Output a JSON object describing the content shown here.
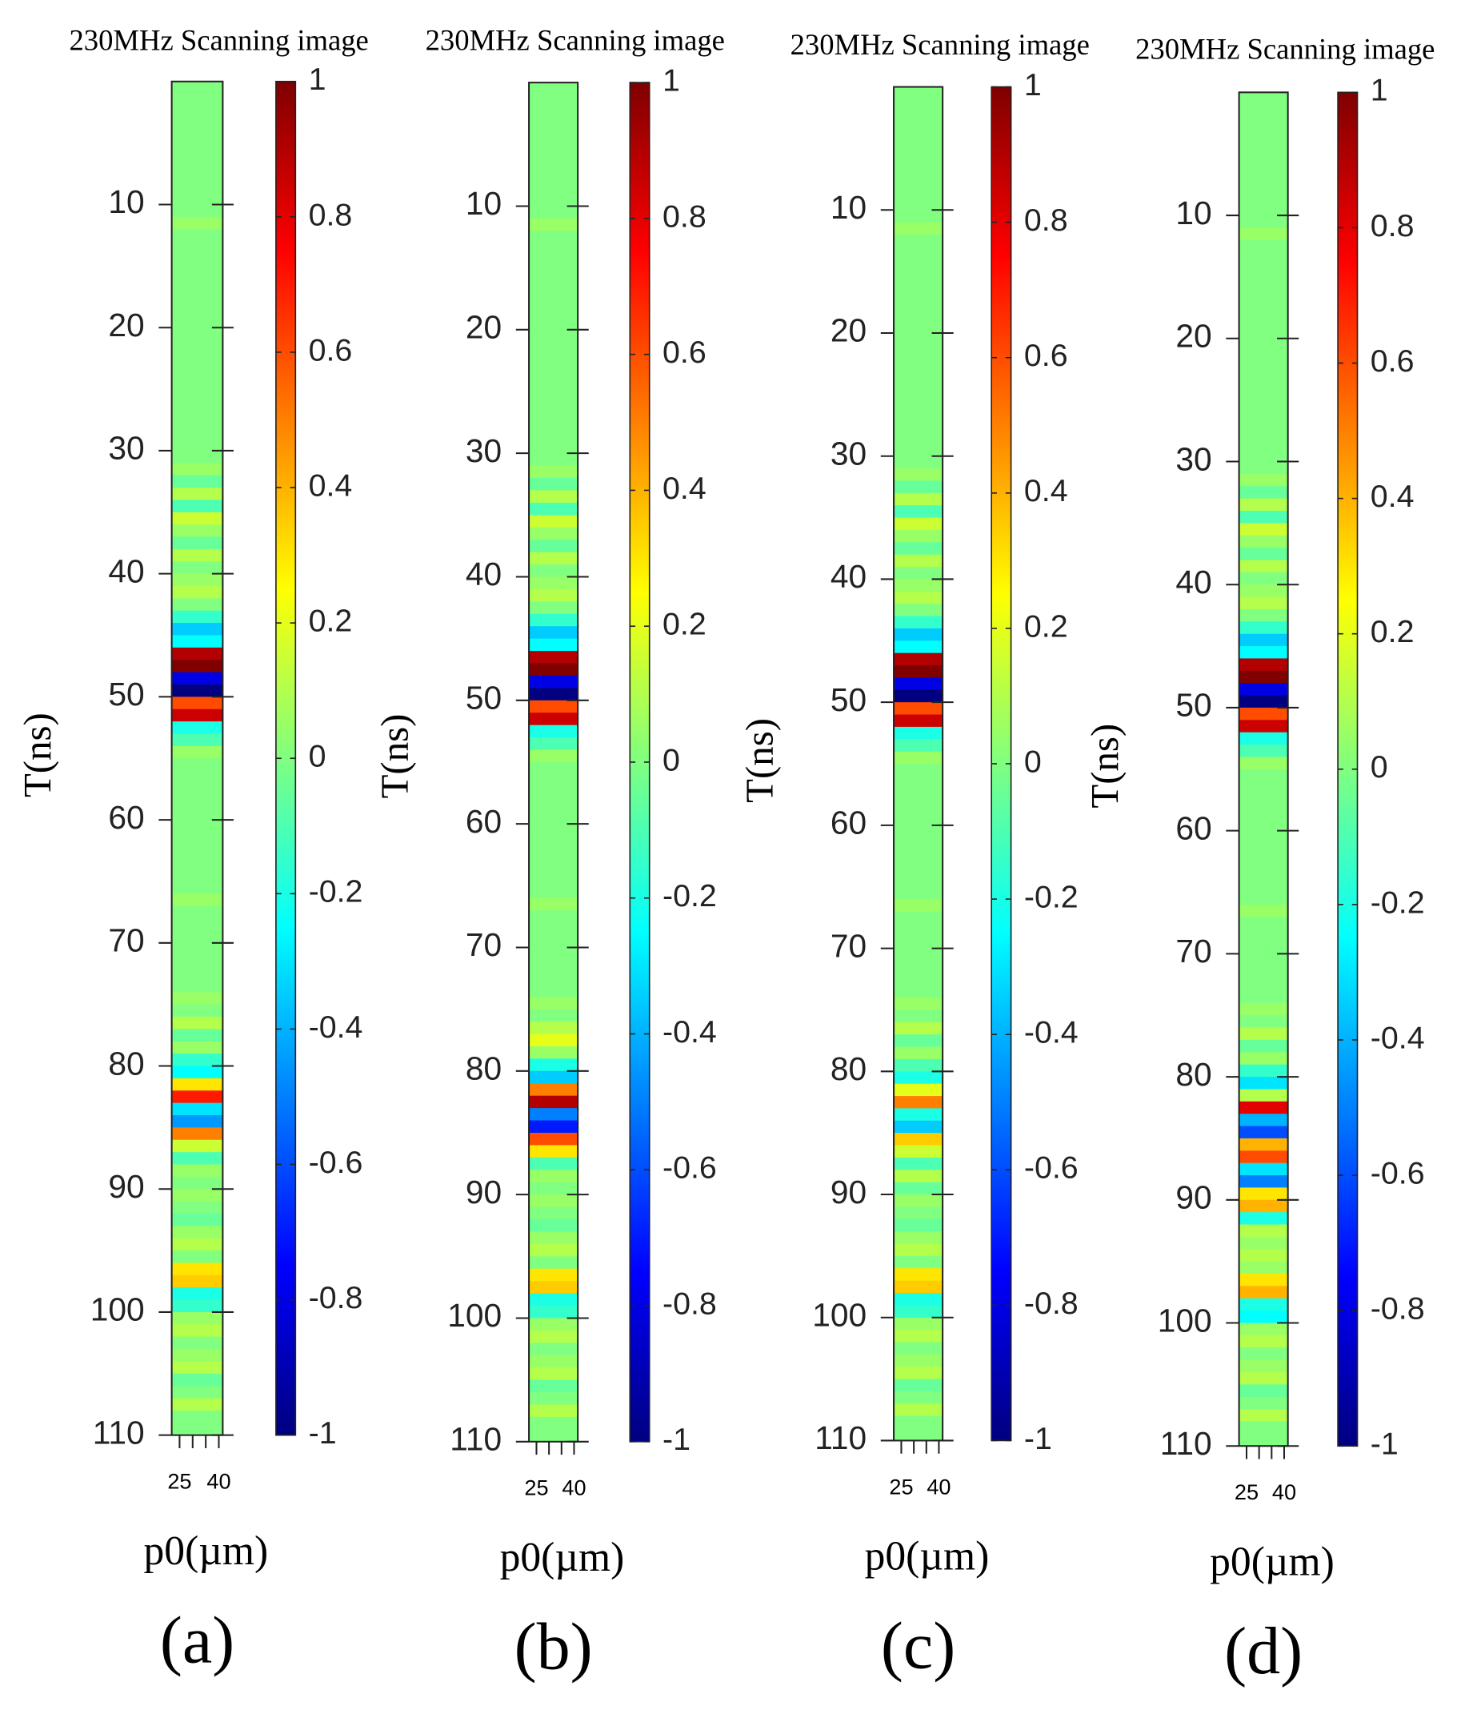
{
  "chart_data": [
    {
      "type": "heatmap",
      "title": "230MHz Scanning image",
      "ylabel": "T(ns)",
      "xlabel": "p0(µm)",
      "panel_label": "(a)",
      "ylim": [
        0,
        110
      ],
      "yticks": [
        10,
        20,
        30,
        40,
        50,
        60,
        70,
        80,
        90,
        100,
        110
      ],
      "xlim": [
        22,
        41.5
      ],
      "xticks": [
        25,
        40
      ],
      "xminor_ticks": [
        30,
        35
      ],
      "colormap": "jet",
      "clim": [
        -1,
        1
      ],
      "cticks": [
        -1,
        -0.8,
        -0.6,
        -0.4,
        -0.2,
        0,
        0.2,
        0.4,
        0.6,
        0.8,
        1
      ],
      "t": [
        1,
        2,
        3,
        4,
        5,
        6,
        7,
        8,
        9,
        10,
        11,
        12,
        13,
        14,
        15,
        16,
        17,
        18,
        19,
        20,
        21,
        22,
        23,
        24,
        25,
        26,
        27,
        28,
        29,
        30,
        31,
        32,
        33,
        34,
        35,
        36,
        37,
        38,
        39,
        40,
        41,
        42,
        43,
        44,
        45,
        46,
        47,
        48,
        49,
        50,
        51,
        52,
        53,
        54,
        55,
        56,
        57,
        58,
        59,
        60,
        61,
        62,
        63,
        64,
        65,
        66,
        67,
        68,
        69,
        70,
        71,
        72,
        73,
        74,
        75,
        76,
        77,
        78,
        79,
        80,
        81,
        82,
        83,
        84,
        85,
        86,
        87,
        88,
        89,
        90,
        91,
        92,
        93,
        94,
        95,
        96,
        97,
        98,
        99,
        100,
        101,
        102,
        103,
        104,
        105,
        106,
        107,
        108,
        109,
        110
      ],
      "values": [
        0,
        0,
        0,
        0,
        0,
        0,
        0,
        0,
        0,
        0,
        0,
        0.05,
        0,
        0,
        0,
        0,
        0,
        0,
        0,
        0,
        0,
        0,
        0,
        0,
        0,
        0,
        0,
        0,
        0,
        0,
        0,
        0.05,
        -0.05,
        0.1,
        -0.1,
        0.15,
        0.05,
        -0.05,
        0.1,
        0,
        0.05,
        0.1,
        0,
        -0.15,
        -0.35,
        -0.25,
        0.9,
        1,
        -0.8,
        -1,
        0.6,
        0.85,
        -0.2,
        -0.1,
        0.05,
        0,
        0,
        0,
        0,
        0,
        0,
        0,
        0,
        0,
        0,
        0,
        0.05,
        0,
        0,
        0,
        0,
        0,
        0,
        0,
        0.05,
        0,
        0.1,
        -0.05,
        0.05,
        -0.15,
        -0.25,
        0.3,
        0.7,
        -0.3,
        -0.45,
        0.5,
        0.15,
        -0.1,
        0.05,
        0,
        0.05,
        0,
        -0.05,
        0.05,
        0.1,
        0,
        0.3,
        0.35,
        -0.2,
        -0.15,
        0.05,
        0.1,
        0,
        0.05,
        0.1,
        -0.05,
        0,
        0.1,
        0,
        0
      ]
    },
    {
      "type": "heatmap",
      "title": "230MHz Scanning image",
      "ylabel": "T(ns)",
      "xlabel": "p0(µm)",
      "panel_label": "(b)",
      "ylim": [
        0,
        110
      ],
      "yticks": [
        10,
        20,
        30,
        40,
        50,
        60,
        70,
        80,
        90,
        100,
        110
      ],
      "xlim": [
        22,
        41.5
      ],
      "xticks": [
        25,
        40
      ],
      "xminor_ticks": [
        30,
        35
      ],
      "colormap": "jet",
      "clim": [
        -1,
        1
      ],
      "cticks": [
        -1,
        -0.8,
        -0.6,
        -0.4,
        -0.2,
        0,
        0.2,
        0.4,
        0.6,
        0.8,
        1
      ],
      "t": [
        1,
        2,
        3,
        4,
        5,
        6,
        7,
        8,
        9,
        10,
        11,
        12,
        13,
        14,
        15,
        16,
        17,
        18,
        19,
        20,
        21,
        22,
        23,
        24,
        25,
        26,
        27,
        28,
        29,
        30,
        31,
        32,
        33,
        34,
        35,
        36,
        37,
        38,
        39,
        40,
        41,
        42,
        43,
        44,
        45,
        46,
        47,
        48,
        49,
        50,
        51,
        52,
        53,
        54,
        55,
        56,
        57,
        58,
        59,
        60,
        61,
        62,
        63,
        64,
        65,
        66,
        67,
        68,
        69,
        70,
        71,
        72,
        73,
        74,
        75,
        76,
        77,
        78,
        79,
        80,
        81,
        82,
        83,
        84,
        85,
        86,
        87,
        88,
        89,
        90,
        91,
        92,
        93,
        94,
        95,
        96,
        97,
        98,
        99,
        100,
        101,
        102,
        103,
        104,
        105,
        106,
        107,
        108,
        109,
        110
      ],
      "values": [
        0,
        0,
        0,
        0,
        0,
        0,
        0,
        0,
        0,
        0,
        0,
        0.05,
        0,
        0,
        0,
        0,
        0,
        0,
        0,
        0,
        0,
        0,
        0,
        0,
        0,
        0,
        0,
        0,
        0,
        0,
        0,
        0.05,
        -0.05,
        0.1,
        -0.1,
        0.15,
        0.05,
        -0.05,
        0.1,
        0,
        0.05,
        0.1,
        0,
        -0.15,
        -0.35,
        -0.25,
        0.9,
        1,
        -0.8,
        -1,
        0.6,
        0.85,
        -0.2,
        -0.1,
        0.05,
        0,
        0,
        0,
        0,
        0,
        0,
        0,
        0,
        0,
        0,
        0,
        0.05,
        0,
        0,
        0,
        0,
        0,
        0,
        0,
        0.05,
        0,
        0.1,
        0.2,
        0.05,
        -0.2,
        -0.35,
        0.5,
        0.9,
        -0.5,
        -0.7,
        0.6,
        0.3,
        -0.1,
        0.05,
        0,
        0.05,
        0,
        -0.05,
        0.05,
        0.1,
        0,
        0.3,
        0.35,
        -0.2,
        -0.15,
        0.05,
        0.1,
        0,
        0.05,
        0.1,
        -0.05,
        0,
        0.1,
        0,
        0
      ]
    },
    {
      "type": "heatmap",
      "title": "230MHz Scanning image",
      "ylabel": "T(ns)",
      "xlabel": "p0(µm)",
      "panel_label": "(c)",
      "ylim": [
        0,
        110
      ],
      "yticks": [
        10,
        20,
        30,
        40,
        50,
        60,
        70,
        80,
        90,
        100,
        110
      ],
      "xlim": [
        22,
        41.5
      ],
      "xticks": [
        25,
        40
      ],
      "xminor_ticks": [
        30,
        35
      ],
      "colormap": "jet",
      "clim": [
        -1,
        1
      ],
      "cticks": [
        -1,
        -0.8,
        -0.6,
        -0.4,
        -0.2,
        0,
        0.2,
        0.4,
        0.6,
        0.8,
        1
      ],
      "t": [
        1,
        2,
        3,
        4,
        5,
        6,
        7,
        8,
        9,
        10,
        11,
        12,
        13,
        14,
        15,
        16,
        17,
        18,
        19,
        20,
        21,
        22,
        23,
        24,
        25,
        26,
        27,
        28,
        29,
        30,
        31,
        32,
        33,
        34,
        35,
        36,
        37,
        38,
        39,
        40,
        41,
        42,
        43,
        44,
        45,
        46,
        47,
        48,
        49,
        50,
        51,
        52,
        53,
        54,
        55,
        56,
        57,
        58,
        59,
        60,
        61,
        62,
        63,
        64,
        65,
        66,
        67,
        68,
        69,
        70,
        71,
        72,
        73,
        74,
        75,
        76,
        77,
        78,
        79,
        80,
        81,
        82,
        83,
        84,
        85,
        86,
        87,
        88,
        89,
        90,
        91,
        92,
        93,
        94,
        95,
        96,
        97,
        98,
        99,
        100,
        101,
        102,
        103,
        104,
        105,
        106,
        107,
        108,
        109,
        110
      ],
      "values": [
        0,
        0,
        0,
        0,
        0,
        0,
        0,
        0,
        0,
        0,
        0,
        0.05,
        0,
        0,
        0,
        0,
        0,
        0,
        0,
        0,
        0,
        0,
        0,
        0,
        0,
        0,
        0,
        0,
        0,
        0,
        0,
        0.05,
        -0.05,
        0.1,
        -0.1,
        0.15,
        0.05,
        -0.05,
        0.1,
        0,
        0.05,
        0.1,
        0,
        -0.15,
        -0.35,
        -0.25,
        0.9,
        1,
        -0.8,
        -1,
        0.6,
        0.85,
        -0.2,
        -0.1,
        0.05,
        0,
        0,
        0,
        0,
        0,
        0,
        0,
        0,
        0,
        0,
        0,
        0.05,
        0,
        0,
        0,
        0,
        0,
        0,
        0,
        0.05,
        0,
        0.1,
        -0.05,
        0.05,
        -0.1,
        -0.2,
        0.2,
        0.5,
        -0.2,
        -0.35,
        0.35,
        0.15,
        -0.1,
        0.1,
        -0.05,
        0.05,
        0,
        -0.05,
        0.05,
        0.1,
        0,
        0.3,
        0.35,
        -0.2,
        -0.15,
        0.05,
        0.1,
        0,
        0.05,
        0.1,
        -0.05,
        0,
        0.1,
        0,
        0
      ]
    },
    {
      "type": "heatmap",
      "title": "230MHz Scanning image",
      "ylabel": "T(ns)",
      "xlabel": "p0(µm)",
      "panel_label": "(d)",
      "ylim": [
        0,
        110
      ],
      "yticks": [
        10,
        20,
        30,
        40,
        50,
        60,
        70,
        80,
        90,
        100,
        110
      ],
      "xlim": [
        22,
        41.5
      ],
      "xticks": [
        25,
        40
      ],
      "xminor_ticks": [
        30,
        35
      ],
      "colormap": "jet",
      "clim": [
        -1,
        1
      ],
      "cticks": [
        -1,
        -0.8,
        -0.6,
        -0.4,
        -0.2,
        0,
        0.2,
        0.4,
        0.6,
        0.8,
        1
      ],
      "t": [
        1,
        2,
        3,
        4,
        5,
        6,
        7,
        8,
        9,
        10,
        11,
        12,
        13,
        14,
        15,
        16,
        17,
        18,
        19,
        20,
        21,
        22,
        23,
        24,
        25,
        26,
        27,
        28,
        29,
        30,
        31,
        32,
        33,
        34,
        35,
        36,
        37,
        38,
        39,
        40,
        41,
        42,
        43,
        44,
        45,
        46,
        47,
        48,
        49,
        50,
        51,
        52,
        53,
        54,
        55,
        56,
        57,
        58,
        59,
        60,
        61,
        62,
        63,
        64,
        65,
        66,
        67,
        68,
        69,
        70,
        71,
        72,
        73,
        74,
        75,
        76,
        77,
        78,
        79,
        80,
        81,
        82,
        83,
        84,
        85,
        86,
        87,
        88,
        89,
        90,
        91,
        92,
        93,
        94,
        95,
        96,
        97,
        98,
        99,
        100,
        101,
        102,
        103,
        104,
        105,
        106,
        107,
        108,
        109,
        110
      ],
      "values": [
        0,
        0,
        0,
        0,
        0,
        0,
        0,
        0,
        0,
        0,
        0,
        0.05,
        0,
        0,
        0,
        0,
        0,
        0,
        0,
        0,
        0,
        0,
        0,
        0,
        0,
        0,
        0,
        0,
        0,
        0,
        0,
        0.05,
        -0.05,
        0.1,
        -0.1,
        0.15,
        0.05,
        -0.05,
        0.1,
        0,
        0.05,
        0.1,
        0,
        -0.15,
        -0.35,
        -0.25,
        0.9,
        1,
        -0.8,
        -1,
        0.6,
        0.85,
        -0.2,
        -0.1,
        0.05,
        0,
        0,
        0,
        0,
        0,
        0,
        0,
        0,
        0,
        0,
        0,
        0.05,
        0,
        0,
        0,
        0,
        0,
        0,
        0,
        0.05,
        0,
        0.1,
        -0.05,
        0.05,
        -0.15,
        -0.3,
        0.1,
        0.8,
        -0.4,
        -0.6,
        0.4,
        0.6,
        -0.3,
        -0.5,
        0.3,
        0.4,
        -0.2,
        0.1,
        0.05,
        0.1,
        0.05,
        0.3,
        0.4,
        -0.2,
        -0.25,
        0.05,
        0.1,
        0,
        0.05,
        0.1,
        -0.05,
        0,
        0.1,
        0,
        0
      ]
    }
  ]
}
